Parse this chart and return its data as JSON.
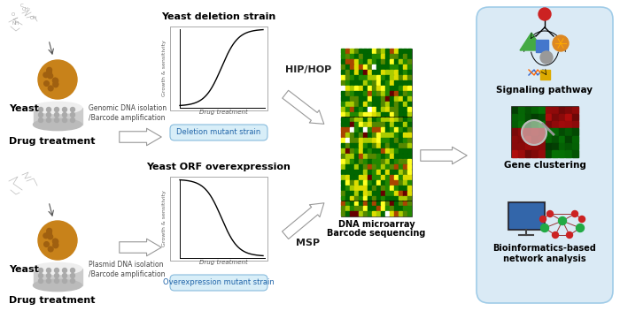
{
  "bg_color": "#ffffff",
  "panel_bg": "#daeaf5",
  "top_row": {
    "yeast_label": "Yeast",
    "drug_label": "Drug treatment",
    "genomic_text": "Genomic DNA isolation\n/Barcode amplification",
    "strain_title": "Yeast deletion strain",
    "strain_xlabel": "Drug treatment",
    "strain_ylabel": "Growth & sensitivity",
    "strain_box_text": "Deletion mutant strain",
    "arrow_label": "HIP/HOP"
  },
  "bottom_row": {
    "yeast_label": "Yeast",
    "drug_label": "Drug treatment",
    "plasmid_text": "Plasmid DNA isolation\n/Barcode amplification",
    "strain_title": "Yeast ORF overexpression",
    "strain_xlabel": "Drug treatment",
    "strain_ylabel": "Growth & sensitivity",
    "strain_box_text": "Overexpression mutant strain",
    "arrow_label": "MSP"
  },
  "center_label_top": "DNA microarray",
  "center_label_bot": "Barcode sequencing",
  "right_labels": [
    "Signaling pathway",
    "Gene clustering",
    "Bioinformatics-based\nnetwork analysis"
  ]
}
